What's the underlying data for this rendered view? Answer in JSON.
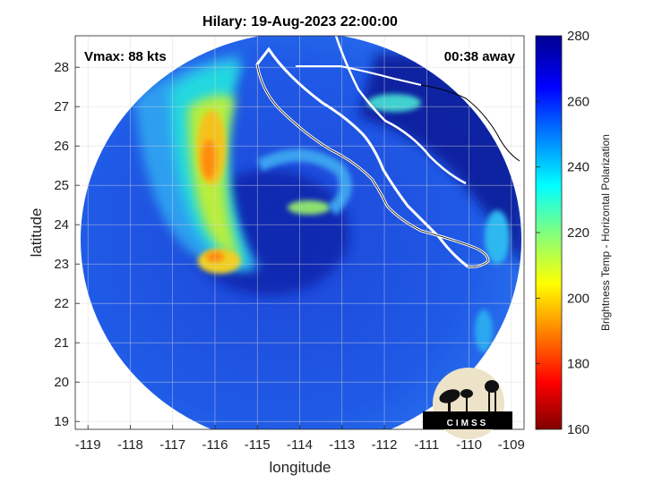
{
  "title": "Hilary: 19-Aug-2023 22:00:00",
  "annotations": {
    "vmax": "Vmax: 88 kts",
    "time_away": "00:38 away"
  },
  "axes": {
    "xlabel": "longitude",
    "ylabel": "latitude",
    "xticks": [
      "-119",
      "-118",
      "-117",
      "-116",
      "-115",
      "-114",
      "-113",
      "-112",
      "-111",
      "-110",
      "-109"
    ],
    "yticks": [
      "19",
      "20",
      "21",
      "22",
      "23",
      "24",
      "25",
      "26",
      "27",
      "28"
    ],
    "xlim": [
      -119.3,
      -108.7
    ],
    "ylim": [
      18.8,
      28.8
    ],
    "grid": true
  },
  "colorbar": {
    "label": "Brightness Temp - Horizontal Polarization",
    "ticks": [
      "160",
      "180",
      "200",
      "220",
      "240",
      "260",
      "280"
    ],
    "range": [
      160,
      280
    ],
    "colormap": "jet"
  },
  "logo": {
    "text": "CIMSS"
  },
  "colors": {
    "ocean_deep": "#0a14a0",
    "ocean_mid": "#1e50e0",
    "rainband": "#ffd21e",
    "eye_core": "#ff7800",
    "coast": "#ffffff"
  },
  "chart_data": {
    "type": "heatmap",
    "title": "Hilary: 19-Aug-2023 22:00:00",
    "xlabel": "longitude",
    "ylabel": "latitude",
    "xlim": [
      -119.3,
      -108.7
    ],
    "ylim": [
      18.8,
      28.8
    ],
    "colorbar_range": [
      160,
      280
    ],
    "features": [
      {
        "name": "cold-band-north",
        "lon": -116.3,
        "lat": 25.6,
        "value": 200
      },
      {
        "name": "cold-band-south",
        "lon": -116.0,
        "lat": 23.0,
        "value": 205
      },
      {
        "name": "eye-wall",
        "lon": -114.2,
        "lat": 24.2,
        "value": 232
      },
      {
        "name": "gulf-band",
        "lon": -111.5,
        "lat": 27.0,
        "value": 228
      }
    ]
  }
}
